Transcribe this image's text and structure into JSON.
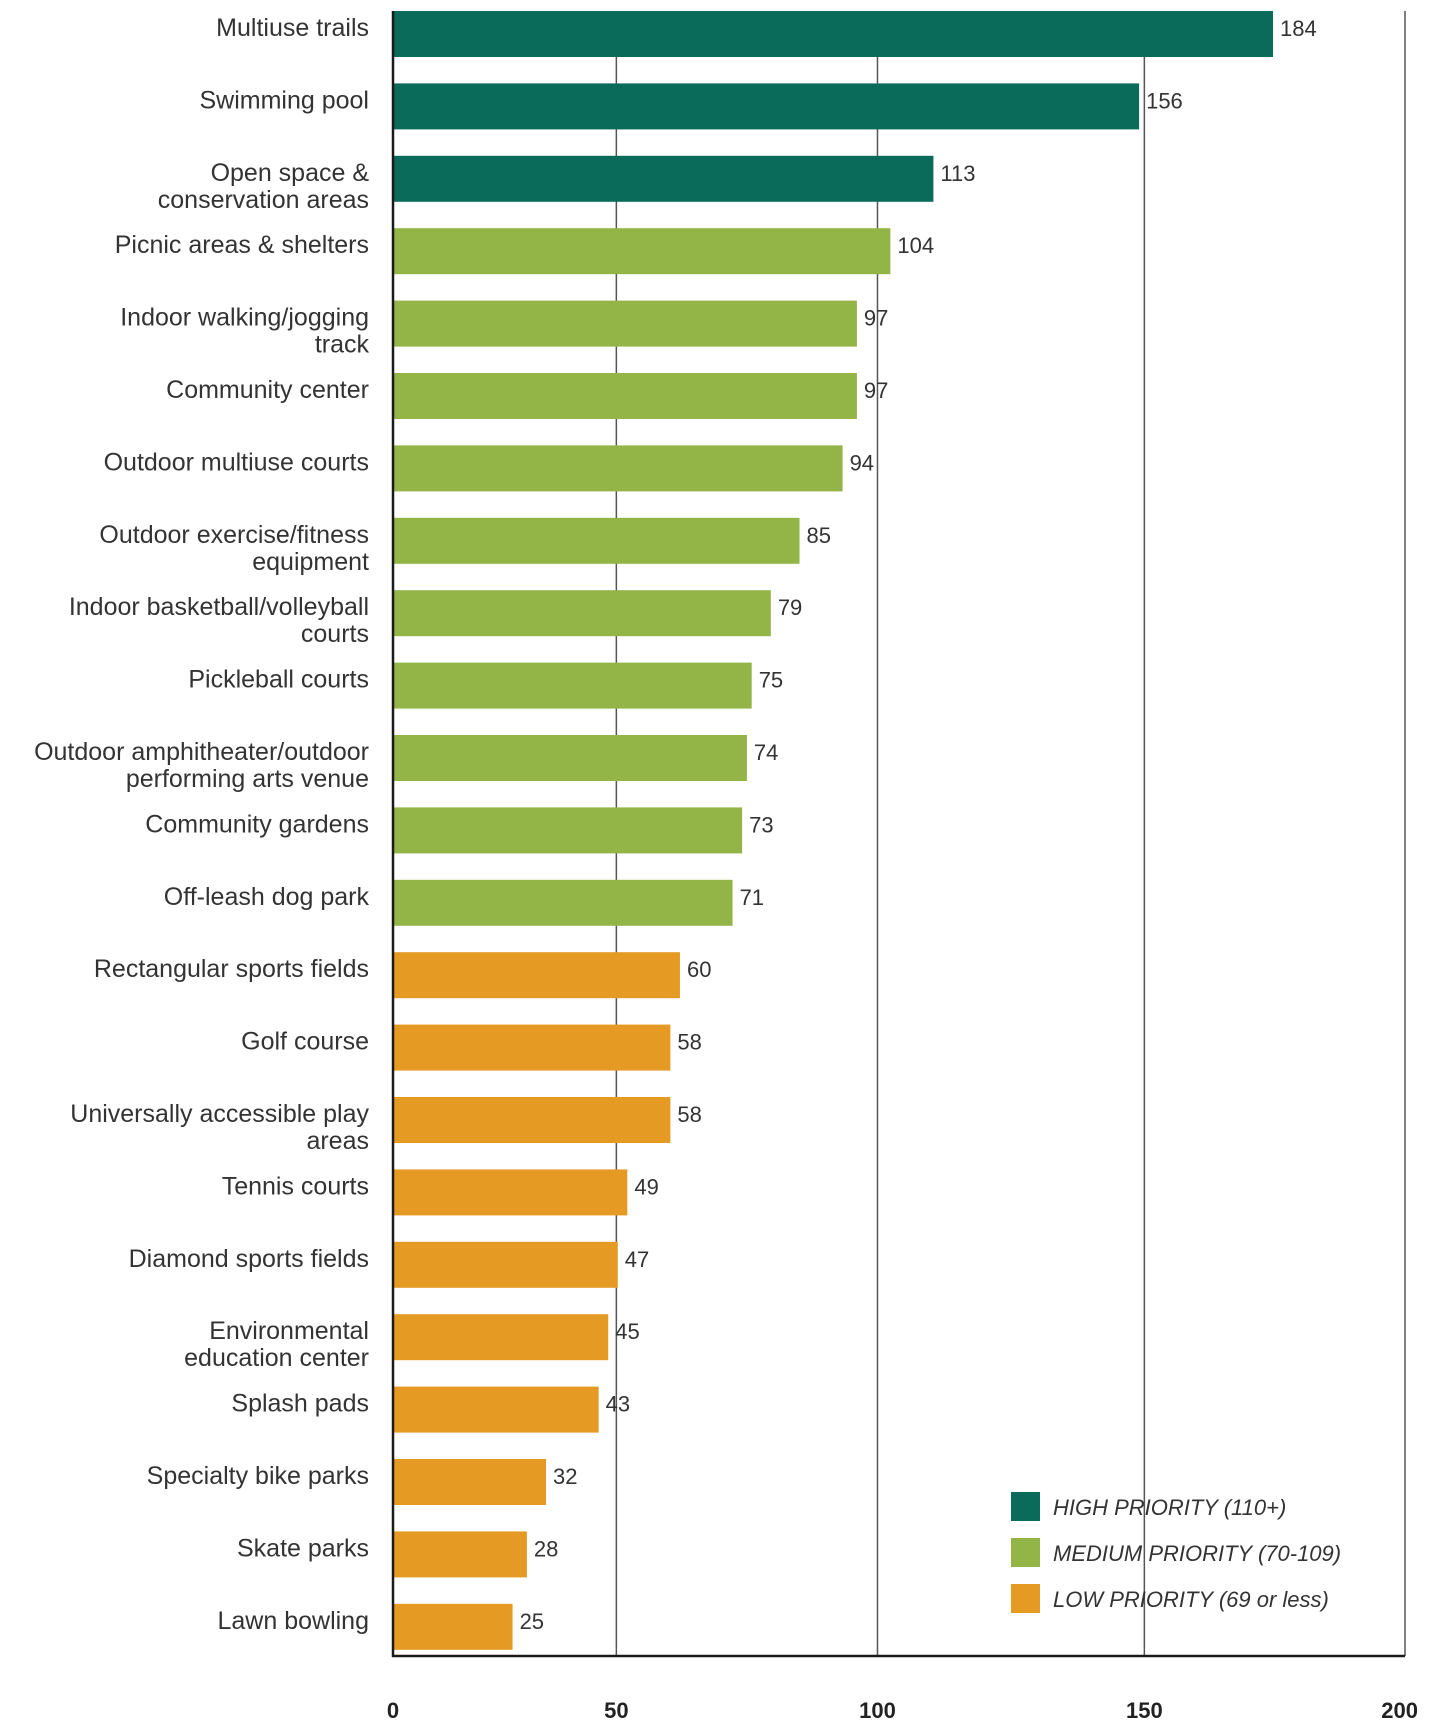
{
  "chart_data": {
    "type": "bar",
    "orientation": "horizontal",
    "categories": [
      "Multiuse trails",
      "Swimming pool",
      "Open space & conservation areas",
      "Picnic areas & shelters",
      "Indoor walking/jogging track",
      "Community center",
      "Outdoor multiuse courts",
      "Outdoor exercise/fitness equipment",
      "Indoor basketball/volleyball courts",
      "Pickleball courts",
      "Outdoor amphitheater/outdoor performing arts venue",
      "Community gardens",
      "Off-leash dog park",
      "Rectangular sports fields",
      "Golf course",
      "Universally accessible play areas",
      "Tennis courts",
      "Diamond sports fields",
      "Environmental education center",
      "Splash pads",
      "Specialty bike parks",
      "Skate parks",
      "Lawn bowling"
    ],
    "category_label_lines": [
      [
        "Multiuse trails"
      ],
      [
        "Swimming pool"
      ],
      [
        "Open space &",
        "conservation areas"
      ],
      [
        "Picnic areas & shelters"
      ],
      [
        "Indoor walking/jogging",
        "track"
      ],
      [
        "Community center"
      ],
      [
        "Outdoor multiuse courts"
      ],
      [
        "Outdoor exercise/fitness",
        "equipment"
      ],
      [
        "Indoor basketball/volleyball",
        "courts"
      ],
      [
        "Pickleball courts"
      ],
      [
        "Outdoor amphitheater/outdoor",
        "performing arts venue"
      ],
      [
        "Community gardens"
      ],
      [
        "Off-leash dog park"
      ],
      [
        "Rectangular sports fields"
      ],
      [
        "Golf course"
      ],
      [
        "Universally accessible play",
        "areas"
      ],
      [
        "Tennis courts"
      ],
      [
        "Diamond sports fields"
      ],
      [
        "Environmental",
        "education center"
      ],
      [
        "Splash pads"
      ],
      [
        "Specialty bike parks"
      ],
      [
        "Skate parks"
      ],
      [
        "Lawn bowling"
      ]
    ],
    "values": [
      184,
      156,
      113,
      104,
      97,
      97,
      94,
      85,
      79,
      75,
      74,
      73,
      71,
      60,
      58,
      58,
      49,
      47,
      45,
      43,
      32,
      28,
      25
    ],
    "priority": [
      "high",
      "high",
      "high",
      "medium",
      "medium",
      "medium",
      "medium",
      "medium",
      "medium",
      "medium",
      "medium",
      "medium",
      "medium",
      "low",
      "low",
      "low",
      "low",
      "low",
      "low",
      "low",
      "low",
      "low",
      "low"
    ],
    "x_ticks": [
      0,
      50,
      100,
      150,
      200
    ],
    "x_tick_positions": [
      0,
      46.7,
      101.3,
      157.1,
      211.6
    ],
    "xlim": [
      0,
      211.6
    ],
    "gridlines": "vertical",
    "legend": {
      "placement": "bottom-right",
      "items": [
        {
          "key": "high",
          "label": "HIGH PRIORITY (110+)",
          "color": "#0b6b5a"
        },
        {
          "key": "medium",
          "label": "MEDIUM PRIORITY (70-109)",
          "color": "#93b547"
        },
        {
          "key": "low",
          "label": "LOW PRIORITY (69 or less)",
          "color": "#e59a23"
        }
      ]
    }
  }
}
